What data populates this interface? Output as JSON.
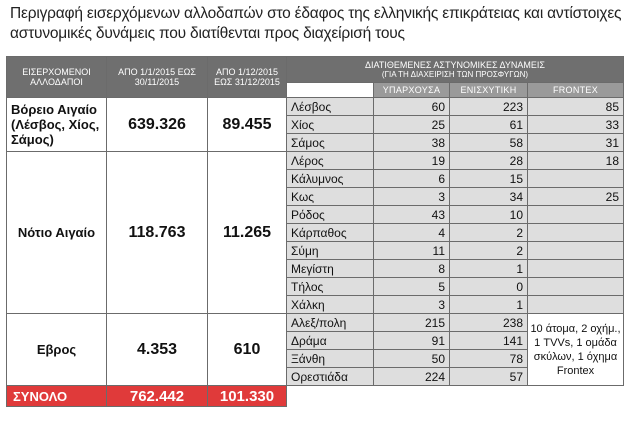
{
  "title": "Περιγραφή εισερχόμενων αλλοδαπών στο έδαφος της ελληνικής επικράτειας και αντίστοιχες αστυνομικές δυνάμεις που διατίθενται προς διαχείρισή τους",
  "headers": {
    "col1": "ΕΙΣΕΡΧΟΜΕΝΟΙ ΑΛΛΟΔΑΠΟΙ",
    "col2": "ΑΠΟ 1/1/2015 ΕΩΣ 30/11/2015",
    "col3": "ΑΠΟ 1/12/2015 ΕΩΣ 31/12/2015",
    "forces": "ΔΙΑΤΙΘΕΜΕΝΕΣ ΑΣΤΥΝΟΜΙΚΕΣ ΔΥΝΑΜΕΙΣ",
    "forces_sub": "(ΓΙΑ ΤΗ ΔΙΑΧΕΙΡΙΣΗ ΤΩΝ ΠΡΟΣΦΥΓΩΝ)",
    "existing": "ΥΠΑΡΧΟΥΣΑ",
    "reinforcement": "ΕΝΙΣΧΥΤΙΚΗ",
    "frontex": "FRONTEX"
  },
  "regions": [
    {
      "name": "Βόρειο Αιγαίο (Λέσβος, Χίος, Σάμος)",
      "period1": "639.326",
      "period2": "89.455",
      "rows": [
        {
          "place": "Λέσβος",
          "existing": "60",
          "reinforcement": "223",
          "frontex": "85"
        },
        {
          "place": "Χίος",
          "existing": "25",
          "reinforcement": "61",
          "frontex": "33"
        },
        {
          "place": "Σάμος",
          "existing": "38",
          "reinforcement": "58",
          "frontex": "31"
        }
      ]
    },
    {
      "name": "Νότιο Αιγαίο",
      "period1": "118.763",
      "period2": "11.265",
      "rows": [
        {
          "place": "Λέρος",
          "existing": "19",
          "reinforcement": "28",
          "frontex": "18"
        },
        {
          "place": "Κάλυμνος",
          "existing": "6",
          "reinforcement": "15",
          "frontex": ""
        },
        {
          "place": "Κως",
          "existing": "3",
          "reinforcement": "34",
          "frontex": "25"
        },
        {
          "place": "Ρόδος",
          "existing": "43",
          "reinforcement": "10",
          "frontex": ""
        },
        {
          "place": "Κάρπαθος",
          "existing": "4",
          "reinforcement": "2",
          "frontex": ""
        },
        {
          "place": "Σύμη",
          "existing": "11",
          "reinforcement": "2",
          "frontex": ""
        },
        {
          "place": "Μεγίστη",
          "existing": "8",
          "reinforcement": "1",
          "frontex": ""
        },
        {
          "place": "Τήλος",
          "existing": "5",
          "reinforcement": "0",
          "frontex": ""
        },
        {
          "place": "Χάλκη",
          "existing": "3",
          "reinforcement": "1",
          "frontex": ""
        }
      ]
    },
    {
      "name": "Εβρος",
      "period1": "4.353",
      "period2": "610",
      "frontex_note": "10 άτομα, 2 οχήμ., 1 TVVs, 1 ομάδα σκύλων, 1 όχημα Frontex",
      "rows": [
        {
          "place": "Αλεξ/πολη",
          "existing": "215",
          "reinforcement": "238"
        },
        {
          "place": "Δράμα",
          "existing": "91",
          "reinforcement": "141"
        },
        {
          "place": "Ξάνθη",
          "existing": "50",
          "reinforcement": "78"
        },
        {
          "place": "Ορεστιάδα",
          "existing": "224",
          "reinforcement": "57"
        }
      ]
    }
  ],
  "total": {
    "label": "ΣΥΝΟΛΟ",
    "period1": "762.442",
    "period2": "101.330"
  }
}
